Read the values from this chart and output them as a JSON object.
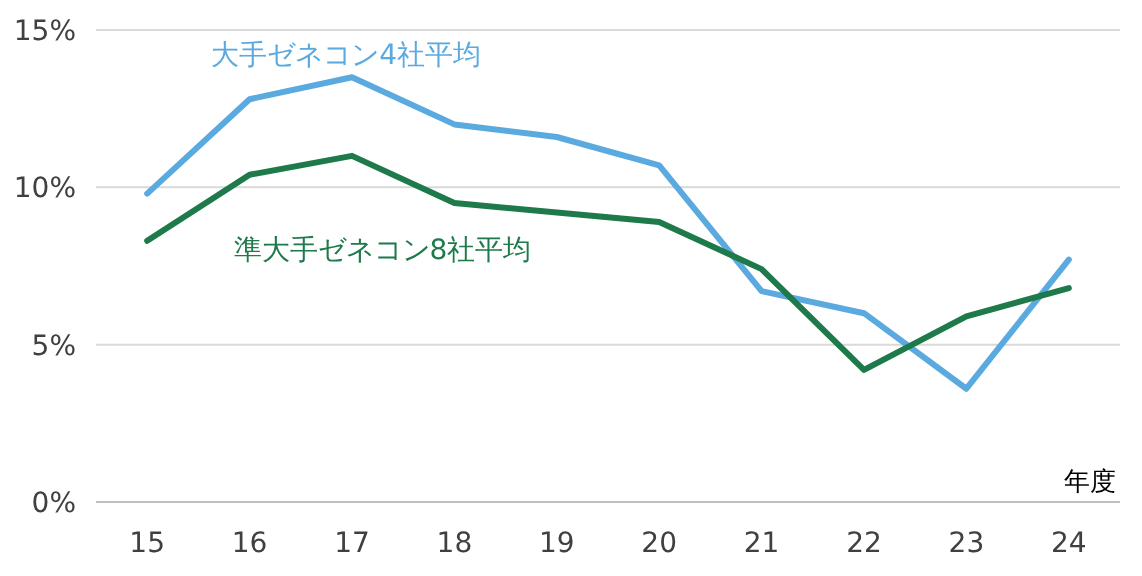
{
  "chart_data": {
    "type": "line",
    "xlabel": "年度",
    "categories": [
      "15",
      "16",
      "17",
      "18",
      "19",
      "20",
      "21",
      "22",
      "23",
      "24"
    ],
    "series": [
      {
        "name": "大手ゼネコン4社平均",
        "color": "#5aaae0",
        "values": [
          9.8,
          12.8,
          13.5,
          12.0,
          11.6,
          10.7,
          6.7,
          6.0,
          3.6,
          7.7
        ]
      },
      {
        "name": "準大手ゼネコン8社平均",
        "color": "#1e7a4a",
        "values": [
          8.3,
          10.4,
          11.0,
          9.5,
          9.2,
          8.9,
          7.4,
          4.2,
          5.9,
          6.8
        ]
      }
    ],
    "ylim": [
      0,
      15
    ],
    "yticks": [
      {
        "value": 0,
        "label": "0%"
      },
      {
        "value": 5,
        "label": "5%"
      },
      {
        "value": 10,
        "label": "10%"
      },
      {
        "value": 15,
        "label": "15%"
      }
    ],
    "grid": "y",
    "legend": false,
    "marker": "none",
    "line_style": "solid"
  }
}
